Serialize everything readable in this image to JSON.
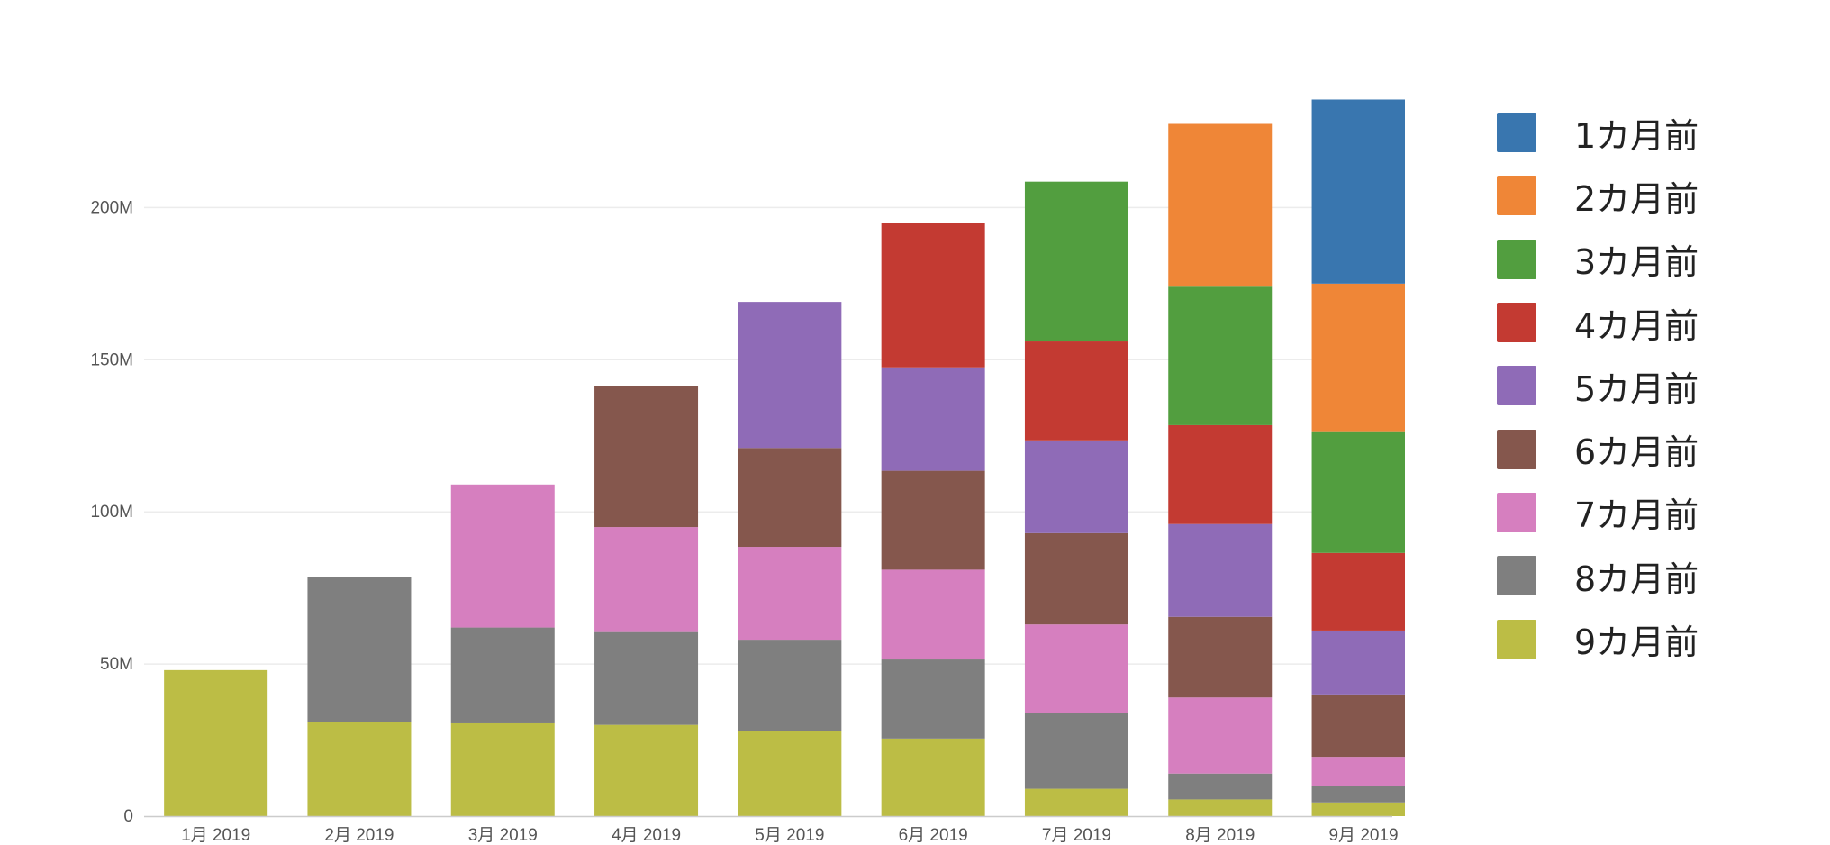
{
  "chart_data": {
    "type": "bar",
    "stacked": true,
    "categories": [
      "1月 2019",
      "2月 2019",
      "3月 2019",
      "4月 2019",
      "5月 2019",
      "6月 2019",
      "7月 2019",
      "8月 2019",
      "9月 2019"
    ],
    "ylim": [
      0,
      240
    ],
    "yticks": [
      0,
      50,
      100,
      150,
      200
    ],
    "ytick_labels": [
      "0",
      "50M",
      "100M",
      "150M",
      "200M"
    ],
    "grid": true,
    "legend_position": "right",
    "series": [
      {
        "name": "9カ月前",
        "color": "#bcbd45",
        "values": [
          48,
          31,
          30.5,
          30,
          28,
          25.5,
          9,
          5.5,
          4.5
        ]
      },
      {
        "name": "8カ月前",
        "color": "#7f7f7f",
        "values": [
          0,
          47.5,
          31.5,
          30.5,
          30,
          26,
          25,
          8.5,
          5.5
        ]
      },
      {
        "name": "7カ月前",
        "color": "#d67fbf",
        "values": [
          0,
          0,
          47,
          34.5,
          30.5,
          29.5,
          29,
          25,
          9.5
        ]
      },
      {
        "name": "6カ月前",
        "color": "#85574d",
        "values": [
          0,
          0,
          0,
          46.5,
          32.5,
          32.5,
          30,
          26.5,
          20.5
        ]
      },
      {
        "name": "5カ月前",
        "color": "#8f6bb7",
        "values": [
          0,
          0,
          0,
          0,
          48,
          34,
          30.5,
          30.5,
          21
        ]
      },
      {
        "name": "4カ月前",
        "color": "#c33a32",
        "values": [
          0,
          0,
          0,
          0,
          0,
          47.5,
          32.5,
          32.5,
          25.5
        ]
      },
      {
        "name": "3カ月前",
        "color": "#529e3f",
        "values": [
          0,
          0,
          0,
          0,
          0,
          0,
          52.5,
          45.5,
          40
        ]
      },
      {
        "name": "2カ月前",
        "color": "#ef8637",
        "values": [
          0,
          0,
          0,
          0,
          0,
          0,
          0,
          53.5,
          48.5
        ]
      },
      {
        "name": "1カ月前",
        "color": "#3976af",
        "values": [
          0,
          0,
          0,
          0,
          0,
          0,
          0,
          0,
          60.5
        ]
      }
    ],
    "legend_order": [
      "1カ月前",
      "2カ月前",
      "3カ月前",
      "4カ月前",
      "5カ月前",
      "6カ月前",
      "7カ月前",
      "8カ月前",
      "9カ月前"
    ]
  }
}
